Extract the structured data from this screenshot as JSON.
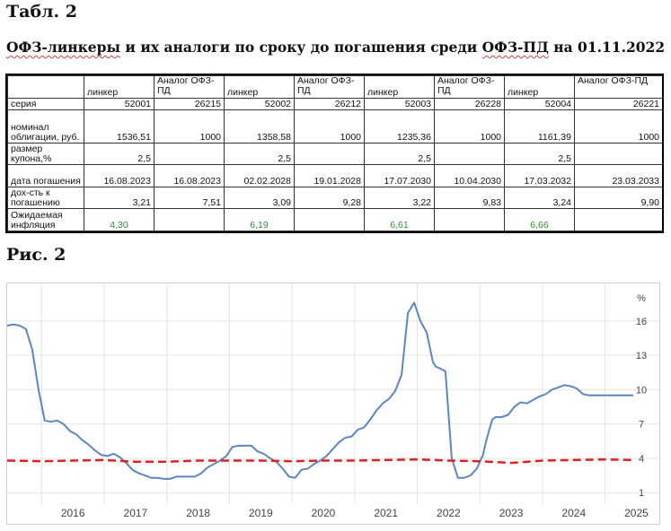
{
  "table_caption": "Табл. 2",
  "table_title": {
    "part1": "ОФЗ-линкеры",
    "part2": " и их аналоги по сроку до погашения среди ",
    "part3": "ОФЗ-ПД",
    "part4": " на 01.11.2022"
  },
  "table": {
    "headers": [
      "",
      "линкер",
      "Аналог ОФЗ-ПД",
      "линкер",
      "Аналог ОФЗ-ПД",
      "линкер",
      "Аналог ОФЗ-ПД",
      "линкер",
      "Аналог ОФЗ-ПД"
    ],
    "rows": [
      {
        "label": "серия",
        "cells": [
          "52001",
          "26215",
          "52002",
          "26212",
          "52003",
          "26228",
          "52004",
          "26221"
        ]
      },
      {
        "label": "номинал облигации, руб.",
        "cells": [
          "1536,51",
          "1000",
          "1358,58",
          "1000",
          "1235,36",
          "1000",
          "1161,39",
          "1000"
        ]
      },
      {
        "label": "размер купона,%",
        "cells": [
          "2,5",
          "",
          "2,5",
          "",
          "2,5",
          "",
          "2,5",
          ""
        ]
      },
      {
        "label": "дата погашения",
        "cells": [
          "16.08.2023",
          "16.08.2023",
          "02.02.2028",
          "19.01.2028",
          "17.07.2030",
          "10.04.2030",
          "17.03.2032",
          "23.03.2033"
        ]
      },
      {
        "label": "дох-сть к погашению",
        "cells": [
          "3,21",
          "7,51",
          "3,09",
          "9,28",
          "3,22",
          "9,83",
          "3,24",
          "9,90"
        ]
      },
      {
        "label": "Ожидаемая инфляция",
        "cells": [
          "4,30",
          "",
          "6,19",
          "",
          "6,61",
          "",
          "6,66",
          ""
        ]
      }
    ]
  },
  "figure_caption": "Рис. 2",
  "chart_data": {
    "type": "line",
    "unit_label": "%",
    "x_ticks": [
      "2016",
      "2017",
      "2018",
      "2019",
      "2020",
      "2021",
      "2022",
      "2023",
      "2024",
      "2025"
    ],
    "y_ticks": [
      1,
      4,
      7,
      10,
      13,
      16
    ],
    "ylim": [
      0,
      18.5
    ],
    "xlim": [
      2015.45,
      2025.45
    ],
    "grid": true,
    "colors": {
      "series_main": "#5b86c0",
      "series_dashed": "#e02020",
      "grid": "#e4e4e4",
      "axis_text": "#444444"
    },
    "series": [
      {
        "style": "solid",
        "x": [
          2015.45,
          2015.55,
          2015.65,
          2015.75,
          2015.85,
          2015.95,
          2016.05,
          2016.15,
          2016.25,
          2016.35,
          2016.45,
          2016.55,
          2016.65,
          2016.75,
          2016.85,
          2016.95,
          2017.05,
          2017.15,
          2017.25,
          2017.35,
          2017.45,
          2017.55,
          2017.65,
          2017.75,
          2017.85,
          2017.95,
          2018.05,
          2018.15,
          2018.25,
          2018.35,
          2018.45,
          2018.55,
          2018.65,
          2018.75,
          2018.85,
          2018.95,
          2019.05,
          2019.15,
          2019.25,
          2019.35,
          2019.45,
          2019.55,
          2019.65,
          2019.75,
          2019.85,
          2019.95,
          2020.05,
          2020.15,
          2020.25,
          2020.35,
          2020.45,
          2020.55,
          2020.65,
          2020.75,
          2020.85,
          2020.95,
          2021.05,
          2021.15,
          2021.25,
          2021.35,
          2021.45,
          2021.55,
          2021.65,
          2021.75,
          2021.85,
          2021.95,
          2022.05,
          2022.15,
          2022.2,
          2022.25,
          2022.3,
          2022.35,
          2022.45,
          2022.55,
          2022.65,
          2022.75,
          2022.85,
          2022.95,
          2023.05,
          2023.1,
          2023.15,
          2023.2,
          2023.25,
          2023.35,
          2023.45,
          2023.55,
          2023.65,
          2023.75,
          2023.85,
          2023.95,
          2024.05,
          2024.15,
          2024.25,
          2024.35,
          2024.45,
          2024.55,
          2024.65,
          2024.75,
          2024.85,
          2024.95,
          2025.05,
          2025.15,
          2025.25,
          2025.35,
          2025.45
        ],
        "y": [
          15.6,
          15.7,
          15.6,
          15.3,
          13.5,
          10.0,
          7.3,
          7.2,
          7.3,
          7.0,
          6.4,
          6.1,
          5.6,
          5.2,
          4.7,
          4.3,
          4.2,
          4.4,
          4.1,
          3.6,
          3.0,
          2.7,
          2.5,
          2.3,
          2.3,
          2.2,
          2.2,
          2.4,
          2.4,
          2.4,
          2.4,
          2.7,
          3.2,
          3.5,
          3.8,
          4.2,
          5.0,
          5.1,
          5.1,
          5.1,
          4.6,
          4.4,
          4.0,
          3.7,
          3.1,
          2.4,
          2.3,
          3.0,
          3.1,
          3.5,
          3.8,
          4.2,
          4.8,
          5.4,
          5.8,
          5.9,
          6.5,
          6.7,
          7.4,
          8.2,
          8.8,
          9.2,
          9.9,
          11.3,
          16.7,
          17.6,
          16.0,
          15.0,
          13.7,
          12.4,
          12.0,
          11.9,
          11.6,
          4.0,
          2.3,
          2.3,
          2.5,
          3.1,
          4.3,
          5.5,
          6.5,
          7.4,
          7.6,
          7.6,
          7.8,
          8.5,
          8.9,
          8.8,
          9.1,
          9.4,
          9.6,
          10.0,
          10.2,
          10.4,
          10.3,
          10.1,
          9.6,
          9.5,
          9.5,
          9.5,
          9.5,
          9.5,
          9.5,
          9.5,
          9.5
        ],
        "y_note": ""
      },
      {
        "style": "dashed",
        "x": [
          2015.45,
          2016.0,
          2016.5,
          2017.0,
          2017.5,
          2018.0,
          2018.5,
          2019.0,
          2019.5,
          2020.0,
          2020.5,
          2021.0,
          2021.5,
          2022.0,
          2022.5,
          2023.0,
          2023.5,
          2024.0,
          2024.5,
          2025.0,
          2025.45
        ],
        "y": [
          3.8,
          3.75,
          3.8,
          3.85,
          3.7,
          3.7,
          3.8,
          3.8,
          3.8,
          3.75,
          3.8,
          3.8,
          3.85,
          3.9,
          3.8,
          3.75,
          3.6,
          3.8,
          3.85,
          3.9,
          3.85
        ]
      }
    ]
  }
}
